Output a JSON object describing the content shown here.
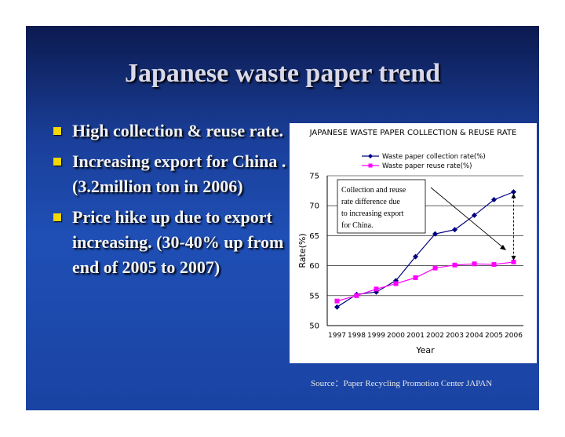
{
  "slide": {
    "title": "Japanese waste paper trend",
    "bullets": [
      "High collection & reuse rate.",
      "Increasing export for China .(3.2million ton in 2006)",
      "Price hike up due to export increasing. (30-40% up from end of 2005 to 2007)"
    ],
    "source": "Source：Paper Recycling Promotion Center JAPAN"
  },
  "colors": {
    "bullet": "#f5d800",
    "series_collection": "#000080",
    "series_reuse": "#ff00ff"
  },
  "chart_data": {
    "type": "line",
    "title": "JAPANESE WASTE PAPER COLLECTION & REUSE RATE",
    "xlabel": "Year",
    "ylabel": "Rate(%)",
    "ylim": [
      50,
      75
    ],
    "yticks": [
      50,
      55,
      60,
      65,
      70,
      75
    ],
    "grid": true,
    "legend": "top",
    "categories": [
      "1997",
      "1998",
      "1999",
      "2000",
      "2001",
      "2002",
      "2003",
      "2004",
      "2005",
      "2006"
    ],
    "series": [
      {
        "name": "Waste paper collection rate(%)",
        "marker": "diamond",
        "values": [
          53.1,
          55.2,
          55.6,
          57.5,
          61.5,
          65.3,
          66.0,
          68.4,
          71.0,
          72.3
        ]
      },
      {
        "name": "Waste paper reuse rate(%)",
        "marker": "square",
        "values": [
          54.1,
          55.0,
          56.1,
          57.0,
          58.0,
          59.6,
          60.1,
          60.3,
          60.2,
          60.6
        ]
      }
    ],
    "annotation": "Collection and reuse rate difference due to increasing export for China."
  }
}
